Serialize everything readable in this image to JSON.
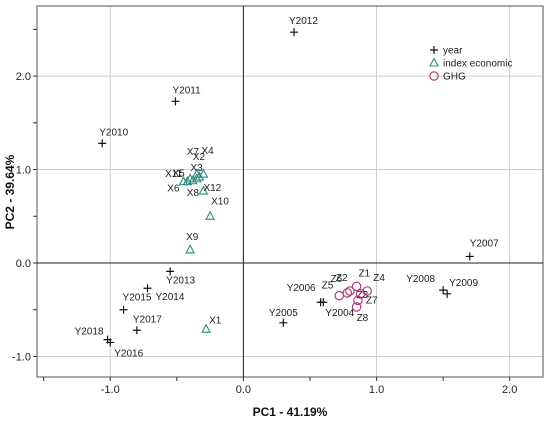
{
  "chart_data": {
    "type": "scatter",
    "xlabel": "PC1 - 41.19%",
    "ylabel": "PC2 - 39.64%",
    "xlim": [
      -1.55,
      2.25
    ],
    "ylim": [
      -1.22,
      2.75
    ],
    "xticks": [
      -1.0,
      0.0,
      1.0,
      2.0
    ],
    "xtick_labels": [
      "-1.0",
      "0.0",
      "1.0",
      "2.0"
    ],
    "yticks": [
      -1.0,
      0.0,
      1.0,
      2.0
    ],
    "ytick_labels": [
      "-1.0",
      "0.0",
      "1.0",
      "2.0"
    ],
    "grid": true,
    "legend_position": "top-right",
    "series": [
      {
        "name": "year",
        "marker": "plus",
        "color": "#111111",
        "points": [
          {
            "label": "Y2004",
            "x": 0.6,
            "y": -0.42
          },
          {
            "label": "Y2005",
            "x": 0.3,
            "y": -0.64
          },
          {
            "label": "Y2006",
            "x": 0.58,
            "y": -0.42
          },
          {
            "label": "Y2007",
            "x": 1.7,
            "y": 0.07
          },
          {
            "label": "Y2008",
            "x": 1.5,
            "y": -0.29
          },
          {
            "label": "Y2009",
            "x": 1.53,
            "y": -0.33
          },
          {
            "label": "Y2010",
            "x": -1.06,
            "y": 1.28
          },
          {
            "label": "Y2011",
            "x": -0.51,
            "y": 1.73
          },
          {
            "label": "Y2012",
            "x": 0.38,
            "y": 2.47
          },
          {
            "label": "Y2013",
            "x": -0.55,
            "y": -0.09
          },
          {
            "label": "Y2014",
            "x": -0.72,
            "y": -0.27
          },
          {
            "label": "Y2015",
            "x": -0.9,
            "y": -0.5
          },
          {
            "label": "Y2016",
            "x": -1.0,
            "y": -0.85
          },
          {
            "label": "Y2017",
            "x": -0.8,
            "y": -0.72
          },
          {
            "label": "Y2018",
            "x": -1.02,
            "y": -0.82
          }
        ]
      },
      {
        "name": "index economic",
        "marker": "triangle",
        "color": "#2f8c80",
        "points": [
          {
            "label": "X1",
            "x": -0.28,
            "y": -0.71
          },
          {
            "label": "X2",
            "x": -0.35,
            "y": 0.95
          },
          {
            "label": "X3",
            "x": -0.33,
            "y": 0.92
          },
          {
            "label": "X4",
            "x": -0.3,
            "y": 0.95
          },
          {
            "label": "X5",
            "x": -0.42,
            "y": 0.87
          },
          {
            "label": "X6",
            "x": -0.45,
            "y": 0.87
          },
          {
            "label": "X7",
            "x": -0.35,
            "y": 0.9
          },
          {
            "label": "X8",
            "x": -0.38,
            "y": 0.88
          },
          {
            "label": "X9",
            "x": -0.4,
            "y": 0.14
          },
          {
            "label": "X10",
            "x": -0.25,
            "y": 0.5
          },
          {
            "label": "X11",
            "x": -0.4,
            "y": 0.9
          },
          {
            "label": "X12",
            "x": -0.3,
            "y": 0.77
          }
        ]
      },
      {
        "name": "GHG",
        "marker": "circle",
        "color": "#b03a7a",
        "points": [
          {
            "label": "Z1",
            "x": 0.85,
            "y": -0.25
          },
          {
            "label": "Z2",
            "x": 0.8,
            "y": -0.3
          },
          {
            "label": "Z3",
            "x": 0.88,
            "y": -0.33
          },
          {
            "label": "Z4",
            "x": 0.93,
            "y": -0.3
          },
          {
            "label": "Z5",
            "x": 0.72,
            "y": -0.35
          },
          {
            "label": "Z6",
            "x": 0.78,
            "y": -0.32
          },
          {
            "label": "Z7",
            "x": 0.86,
            "y": -0.4
          },
          {
            "label": "Z8",
            "x": 0.85,
            "y": -0.47
          }
        ]
      }
    ]
  }
}
